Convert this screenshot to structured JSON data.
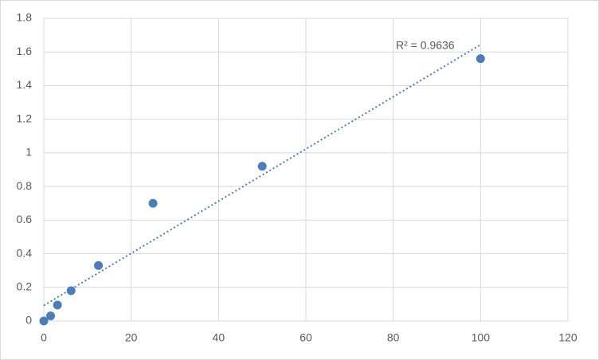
{
  "chart_data": {
    "type": "scatter",
    "x": [
      0,
      1.56,
      3.125,
      6.25,
      12.5,
      25,
      50,
      100
    ],
    "series": [
      {
        "color": "#4a7ebb",
        "values": [
          0,
          0.03,
          0.095,
          0.18,
          0.33,
          0.7,
          0.92,
          1.56
        ]
      }
    ],
    "xlim": [
      0,
      120
    ],
    "xticks": [
      0,
      20,
      40,
      60,
      80,
      100,
      120
    ],
    "ylim": [
      0,
      1.8
    ],
    "yticks": [
      0,
      0.2,
      0.4,
      0.6,
      0.8,
      1,
      1.2,
      1.4,
      1.6,
      1.8
    ],
    "grid": true,
    "trendline": "linear",
    "trendline_color": "#4a7ebb",
    "annotation": "R² = 0.9636"
  }
}
